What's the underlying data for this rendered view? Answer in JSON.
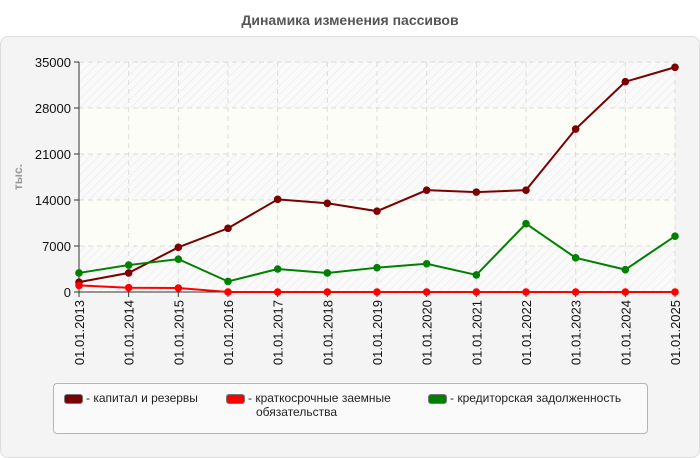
{
  "title": "Динамика изменения пассивов",
  "legend": [
    {
      "label": "- капитал и резервы",
      "color": "#7b0000"
    },
    {
      "label": "- краткосрочные заемные обязательства",
      "line1": "- краткосрочные заемные",
      "line2": "обязательства",
      "color": "#ff0000"
    },
    {
      "label": "- кредиторская задолженность",
      "color": "#008000"
    }
  ],
  "chart_data": {
    "type": "line",
    "title": "Динамика изменения пассивов",
    "xlabel": "",
    "ylabel": "тыс.",
    "ylim": [
      0,
      35000
    ],
    "yticks": [
      0,
      7000,
      14000,
      21000,
      28000,
      35000
    ],
    "grid": true,
    "legend_position": "bottom",
    "categories": [
      "01.01.2013",
      "01.01.2014",
      "01.01.2015",
      "01.01.2016",
      "01.01.2017",
      "01.01.2018",
      "01.01.2019",
      "01.01.2020",
      "01.01.2021",
      "01.01.2022",
      "01.01.2023",
      "01.01.2024",
      "01.01.2025"
    ],
    "series": [
      {
        "name": "капитал и резервы",
        "color": "#7b0000",
        "values": [
          1500,
          2900,
          6800,
          9700,
          14100,
          13500,
          12300,
          15500,
          15200,
          15500,
          24800,
          32000,
          34200
        ]
      },
      {
        "name": "краткосрочные заемные обязательства",
        "color": "#ff0000",
        "values": [
          1000,
          650,
          600,
          0,
          0,
          0,
          0,
          0,
          0,
          0,
          0,
          0,
          0
        ]
      },
      {
        "name": "кредиторская задолженность",
        "color": "#008000",
        "values": [
          2900,
          4100,
          5000,
          1600,
          3500,
          2900,
          3700,
          4300,
          2600,
          10400,
          5200,
          3400,
          8500
        ]
      }
    ]
  }
}
